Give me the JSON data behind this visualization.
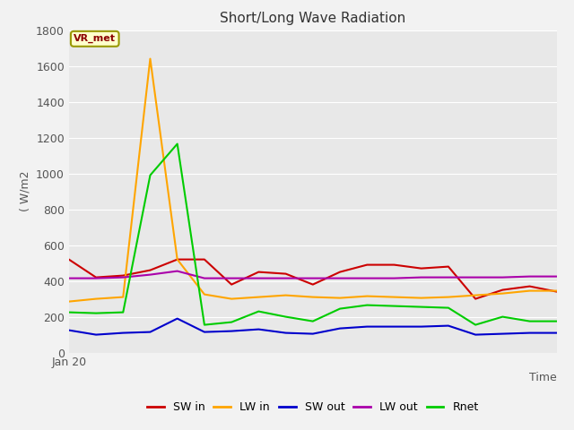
{
  "title": "Short/Long Wave Radiation",
  "ylabel": "( W/m2",
  "xlabel": "Time",
  "xlim": [
    0,
    18
  ],
  "ylim": [
    0,
    1800
  ],
  "yticks": [
    0,
    200,
    400,
    600,
    800,
    1000,
    1200,
    1400,
    1600,
    1800
  ],
  "annotation_text": "VR_met",
  "x_label_text": "Jan 20",
  "fig_bg": "#f2f2f2",
  "plot_bg": "#e8e8e8",
  "grid_color": "#ffffff",
  "series": {
    "SW_in": {
      "color": "#cc0000",
      "label": "SW in",
      "values": [
        520,
        420,
        430,
        460,
        520,
        520,
        380,
        450,
        440,
        380,
        450,
        490,
        490,
        470,
        480,
        300,
        350,
        370,
        340
      ]
    },
    "LW_in": {
      "color": "#ffa500",
      "label": "LW in",
      "values": [
        285,
        300,
        310,
        1640,
        520,
        325,
        300,
        310,
        320,
        310,
        305,
        315,
        310,
        305,
        310,
        320,
        330,
        345,
        345
      ]
    },
    "SW_out": {
      "color": "#0000cc",
      "label": "SW out",
      "values": [
        125,
        100,
        110,
        115,
        190,
        115,
        120,
        130,
        110,
        105,
        135,
        145,
        145,
        145,
        150,
        100,
        105,
        110,
        110
      ]
    },
    "LW_out": {
      "color": "#aa00aa",
      "label": "LW out",
      "values": [
        415,
        415,
        420,
        435,
        455,
        415,
        415,
        415,
        415,
        415,
        415,
        415,
        415,
        420,
        420,
        420,
        420,
        425,
        425
      ]
    },
    "Rnet": {
      "color": "#00cc00",
      "label": "Rnet",
      "values": [
        225,
        220,
        225,
        990,
        1165,
        155,
        170,
        230,
        200,
        175,
        245,
        265,
        260,
        255,
        250,
        155,
        200,
        175,
        175
      ]
    }
  }
}
